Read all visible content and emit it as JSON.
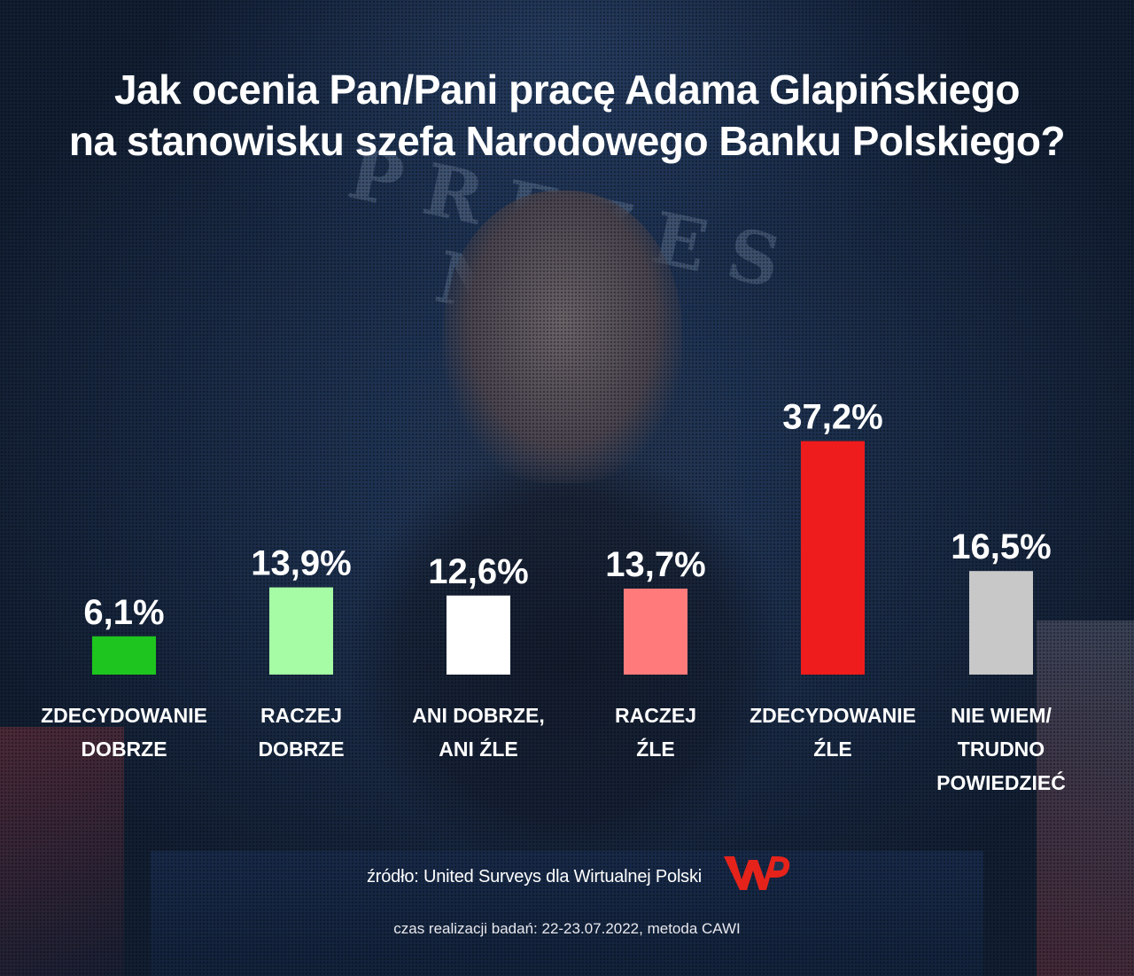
{
  "title_lines": [
    "Jak ocenia Pan/Pani pracę Adama Glapińskiego",
    "na stanowisku szefa Narodowego Banku Polskiego?"
  ],
  "chart_data": {
    "type": "bar",
    "categories": [
      [
        "ZDECYDOWANIE",
        "DOBRZE"
      ],
      [
        "RACZEJ",
        "DOBRZE"
      ],
      [
        "ANI DOBRZE,",
        "ANI ŹLE"
      ],
      [
        "RACZEJ",
        "ŹLE"
      ],
      [
        "ZDECYDOWANIE",
        "ŹLE"
      ],
      [
        "NIE WIEM/",
        "TRUDNO",
        "POWIEDZIEĆ"
      ]
    ],
    "values": [
      6.1,
      13.9,
      12.6,
      13.7,
      37.2,
      16.5
    ],
    "value_labels": [
      "6,1%",
      "13,9%",
      "12,6%",
      "13,7%",
      "37,2%",
      "16,5%"
    ],
    "colors": [
      "#1ec51e",
      "#a5fca4",
      "#ffffff",
      "#ff7b7b",
      "#ee1c1c",
      "#c8c8c8"
    ],
    "grid": false
  },
  "source_text": "źródło: United Surveys dla Wirtualnej Polski",
  "logo_text": "WP",
  "meta_text": "czas realizacji badań: 22-23.07.2022, metoda CAWI"
}
